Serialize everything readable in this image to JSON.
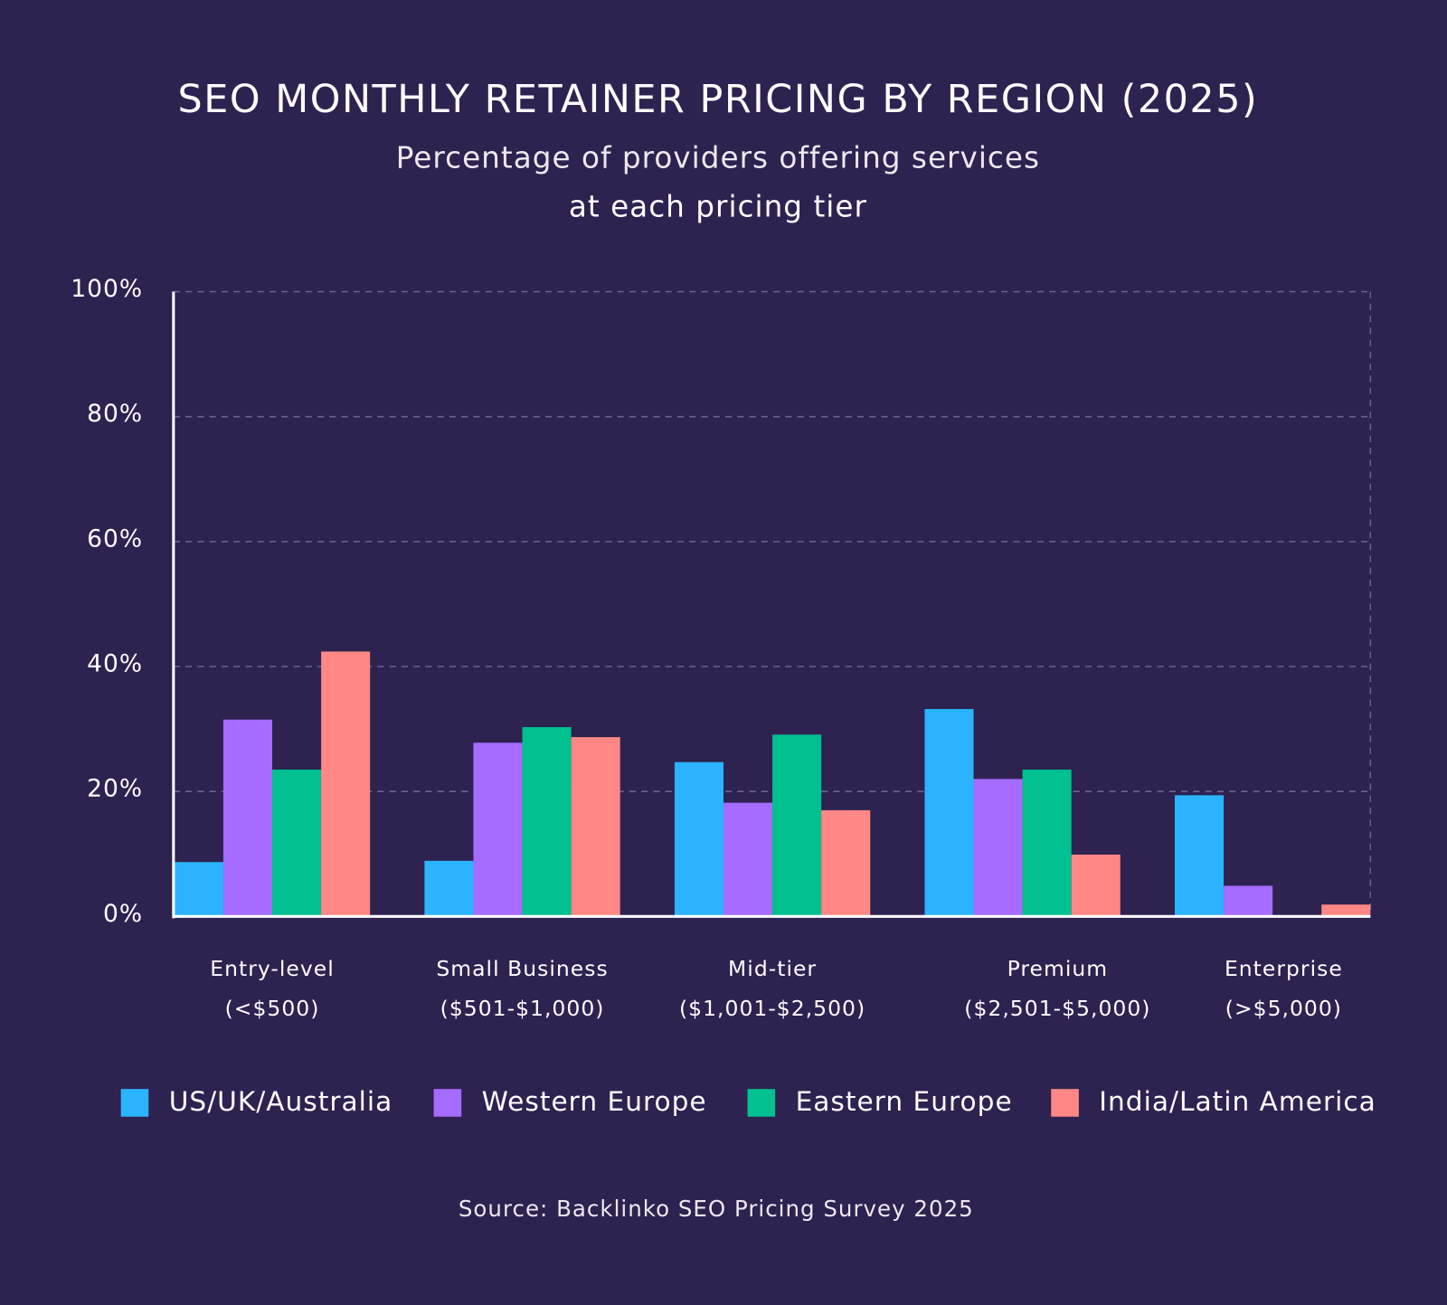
{
  "chart_data": {
    "type": "bar",
    "title": "SEO MONTHLY RETAINER PRICING BY REGION (2025)",
    "subtitle": [
      "Percentage of providers offering services",
      "at each pricing tier"
    ],
    "categories": [
      [
        "Entry-level",
        "(<$500)"
      ],
      [
        "Small Business",
        "($501-$1,000)"
      ],
      [
        "Mid-tier",
        "($1,001-$2,500)"
      ],
      [
        "Premium",
        "($2,501-$5,000)"
      ],
      [
        "Enterprise",
        "(>$5,000)"
      ]
    ],
    "series": [
      {
        "name": "US/UK/Australia",
        "color": "#2bb3ff",
        "values": [
          8.7,
          8.9,
          24.7,
          33.2,
          19.4
        ]
      },
      {
        "name": "Western Europe",
        "color": "#a66bff",
        "values": [
          31.5,
          27.8,
          18.2,
          22,
          4.9
        ]
      },
      {
        "name": "Eastern Europe",
        "color": "#00c08f",
        "values": [
          23.5,
          30.3,
          29.1,
          23.5,
          0
        ]
      },
      {
        "name": "India/Latin America",
        "color": "#ff8785",
        "values": [
          42.4,
          28.7,
          17,
          9.9,
          1.9
        ]
      }
    ],
    "ylim": [
      0,
      100
    ],
    "yticks": [
      {
        "value": 0,
        "label": "0%"
      },
      {
        "value": 20,
        "label": "20%"
      },
      {
        "value": 40,
        "label": "40%"
      },
      {
        "value": 60,
        "label": "60%"
      },
      {
        "value": 80,
        "label": "80%"
      },
      {
        "value": 100,
        "label": "100%"
      }
    ],
    "grid": true,
    "legend": "bottom",
    "source": "Source: Backlinko SEO Pricing Survey 2025"
  }
}
